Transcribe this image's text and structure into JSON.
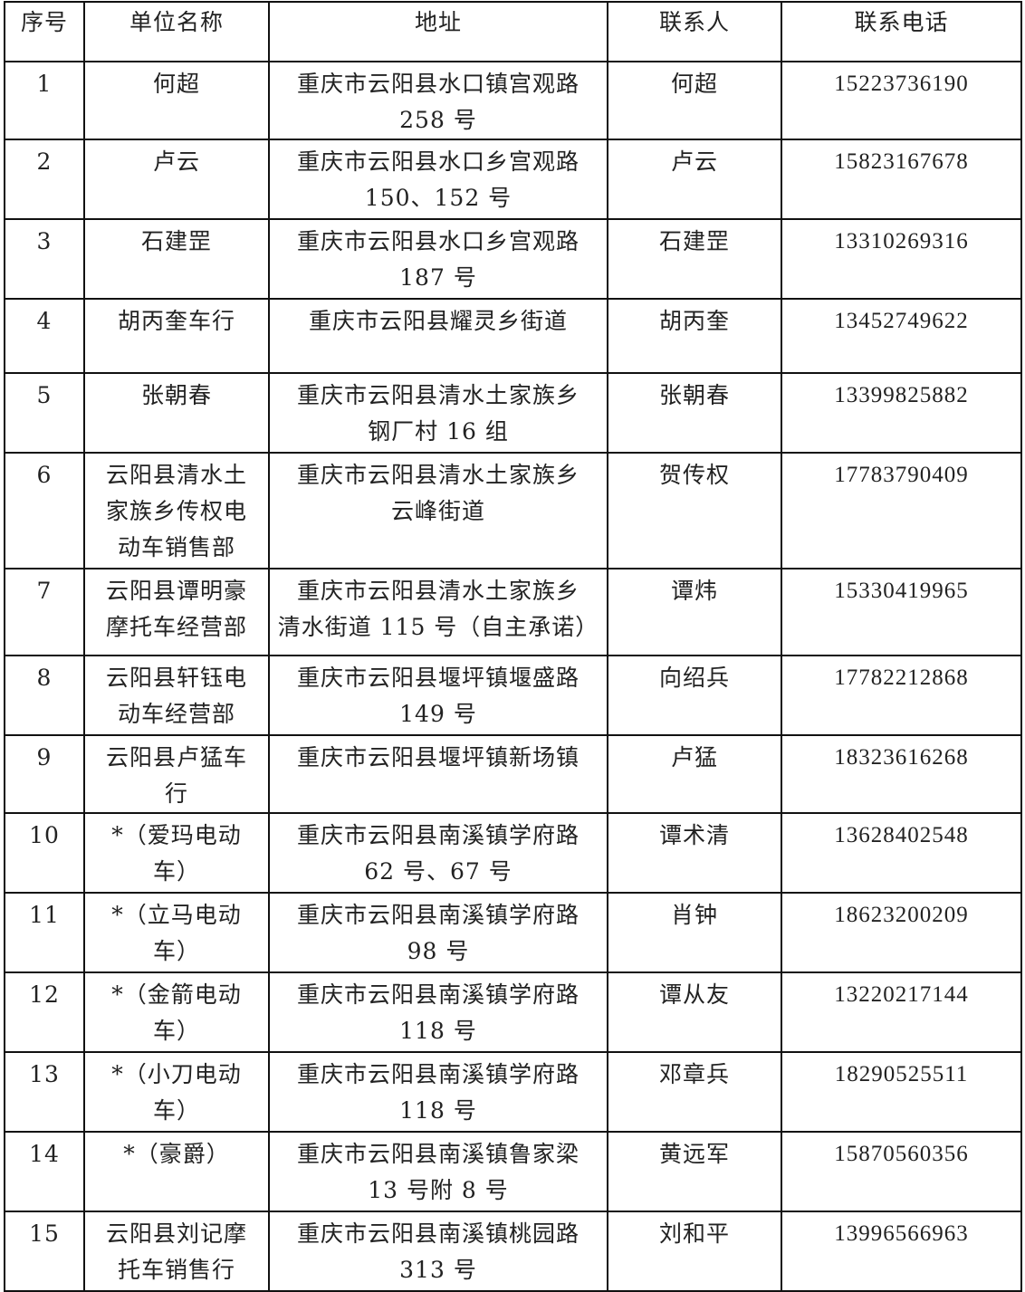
{
  "headers": [
    "序号",
    "单位名称",
    "地址",
    "联系人",
    "联系电话"
  ],
  "rows": [
    {
      "no": "1",
      "name": "何超",
      "address": "重庆市云阳县水口镇宫观路\n258 号",
      "contact": "何超",
      "phone": "15223736190"
    },
    {
      "no": "2",
      "name": "卢云",
      "address": "重庆市云阳县水口乡宫观路\n150、152 号",
      "contact": "卢云",
      "phone": "15823167678"
    },
    {
      "no": "3",
      "name": "石建罡",
      "address": "重庆市云阳县水口乡宫观路\n187 号",
      "contact": "石建罡",
      "phone": "13310269316"
    },
    {
      "no": "4",
      "name": "胡丙奎车行",
      "address": "重庆市云阳县耀灵乡街道",
      "contact": "胡丙奎",
      "phone": "13452749622"
    },
    {
      "no": "5",
      "name": "张朝春",
      "address": "重庆市云阳县清水土家族乡\n钢厂村 16 组",
      "contact": "张朝春",
      "phone": "13399825882"
    },
    {
      "no": "6",
      "name": "云阳县清水土\n家族乡传权电\n动车销售部",
      "address": "重庆市云阳县清水土家族乡\n云峰街道",
      "contact": "贺传权",
      "phone": "17783790409"
    },
    {
      "no": "7",
      "name": "云阳县谭明豪\n摩托车经营部",
      "address": "重庆市云阳县清水土家族乡\n清水街道 115 号（自主承诺）",
      "contact": "谭炜",
      "phone": "15330419965"
    },
    {
      "no": "8",
      "name": "云阳县轩钰电\n动车经营部",
      "address": "重庆市云阳县堰坪镇堰盛路\n149 号",
      "contact": "向绍兵",
      "phone": "17782212868"
    },
    {
      "no": "9",
      "name": "云阳县卢猛车\n行",
      "address": "重庆市云阳县堰坪镇新场镇",
      "contact": "卢猛",
      "phone": "18323616268"
    },
    {
      "no": "10",
      "name": "*（爱玛电动\n车）",
      "address": "重庆市云阳县南溪镇学府路\n62 号、67 号",
      "contact": "谭术清",
      "phone": "13628402548"
    },
    {
      "no": "11",
      "name": "*（立马电动\n车）",
      "address": "重庆市云阳县南溪镇学府路\n98 号",
      "contact": "肖钟",
      "phone": "18623200209"
    },
    {
      "no": "12",
      "name": "*（金箭电动\n车）",
      "address": "重庆市云阳县南溪镇学府路\n118 号",
      "contact": "谭从友",
      "phone": "13220217144"
    },
    {
      "no": "13",
      "name": "*（小刀电动\n车）",
      "address": "重庆市云阳县南溪镇学府路\n118 号",
      "contact": "邓章兵",
      "phone": "18290525511"
    },
    {
      "no": "14",
      "name": "*（豪爵）",
      "address": "重庆市云阳县南溪镇鲁家梁\n13 号附 8 号",
      "contact": "黄远军",
      "phone": "15870560356"
    },
    {
      "no": "15",
      "name": "云阳县刘记摩\n托车销售行",
      "address": "重庆市云阳县南溪镇桃园路\n313 号",
      "contact": "刘和平",
      "phone": "13996566963"
    }
  ]
}
